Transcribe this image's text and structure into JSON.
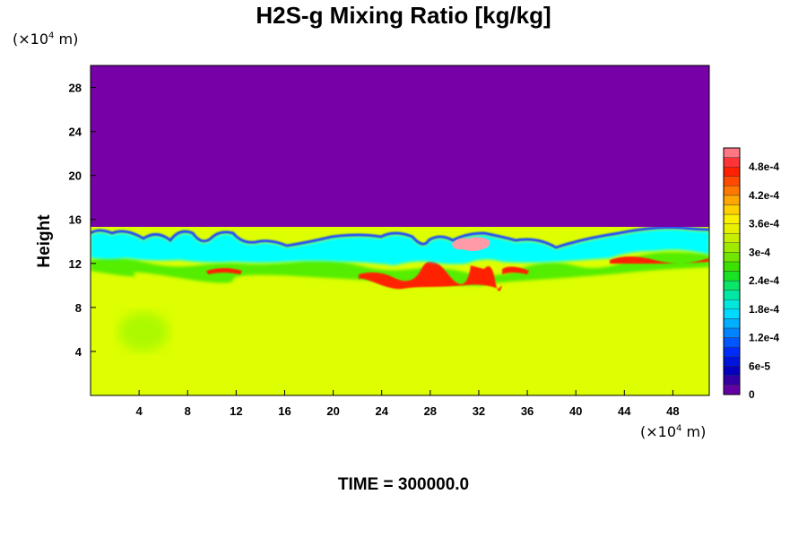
{
  "chart_data": {
    "type": "heatmap",
    "title": "H2S-g Mixing Ratio [kg/kg]",
    "ylabel": "Height",
    "y_unit_text": "(×10",
    "y_unit_exp": "4",
    "y_unit_tail": " m)",
    "x_unit_text": "(×10",
    "x_unit_exp": "4",
    "x_unit_tail": " m)",
    "xlim": [
      0,
      51
    ],
    "ylim": [
      0,
      30
    ],
    "x_ticks": [
      4,
      8,
      12,
      16,
      20,
      24,
      28,
      32,
      36,
      40,
      44,
      48
    ],
    "y_ticks": [
      4,
      8,
      12,
      16,
      20,
      24,
      28
    ],
    "colorbar": {
      "range": [
        0,
        0.00052
      ],
      "tick_values": [
        0,
        6e-05,
        0.00012,
        0.00018,
        0.00024,
        0.0003,
        0.00036,
        0.00042,
        0.00048
      ],
      "tick_labels": [
        "0",
        "6e-5",
        "1.2e-4",
        "1.8e-4",
        "2.4e-4",
        "3e-4",
        "3.6e-4",
        "4.2e-4",
        "4.8e-4"
      ]
    },
    "fields": {
      "upper_region_value": 0,
      "lower_region_value": 0.00035,
      "interface_height_range": [
        11,
        15
      ],
      "max_value_region_x": [
        30,
        32
      ],
      "max_value_region_y": [
        12.5,
        13.5
      ]
    },
    "footer": "TIME = 300000.0"
  },
  "colors": {
    "purple": "#7700a6",
    "yellow": "#ddff00",
    "cyan": "#00ffff",
    "blue": "#1a4cff",
    "green": "#55ee00",
    "red": "#ff2200",
    "pink": "#ff9aa8"
  }
}
